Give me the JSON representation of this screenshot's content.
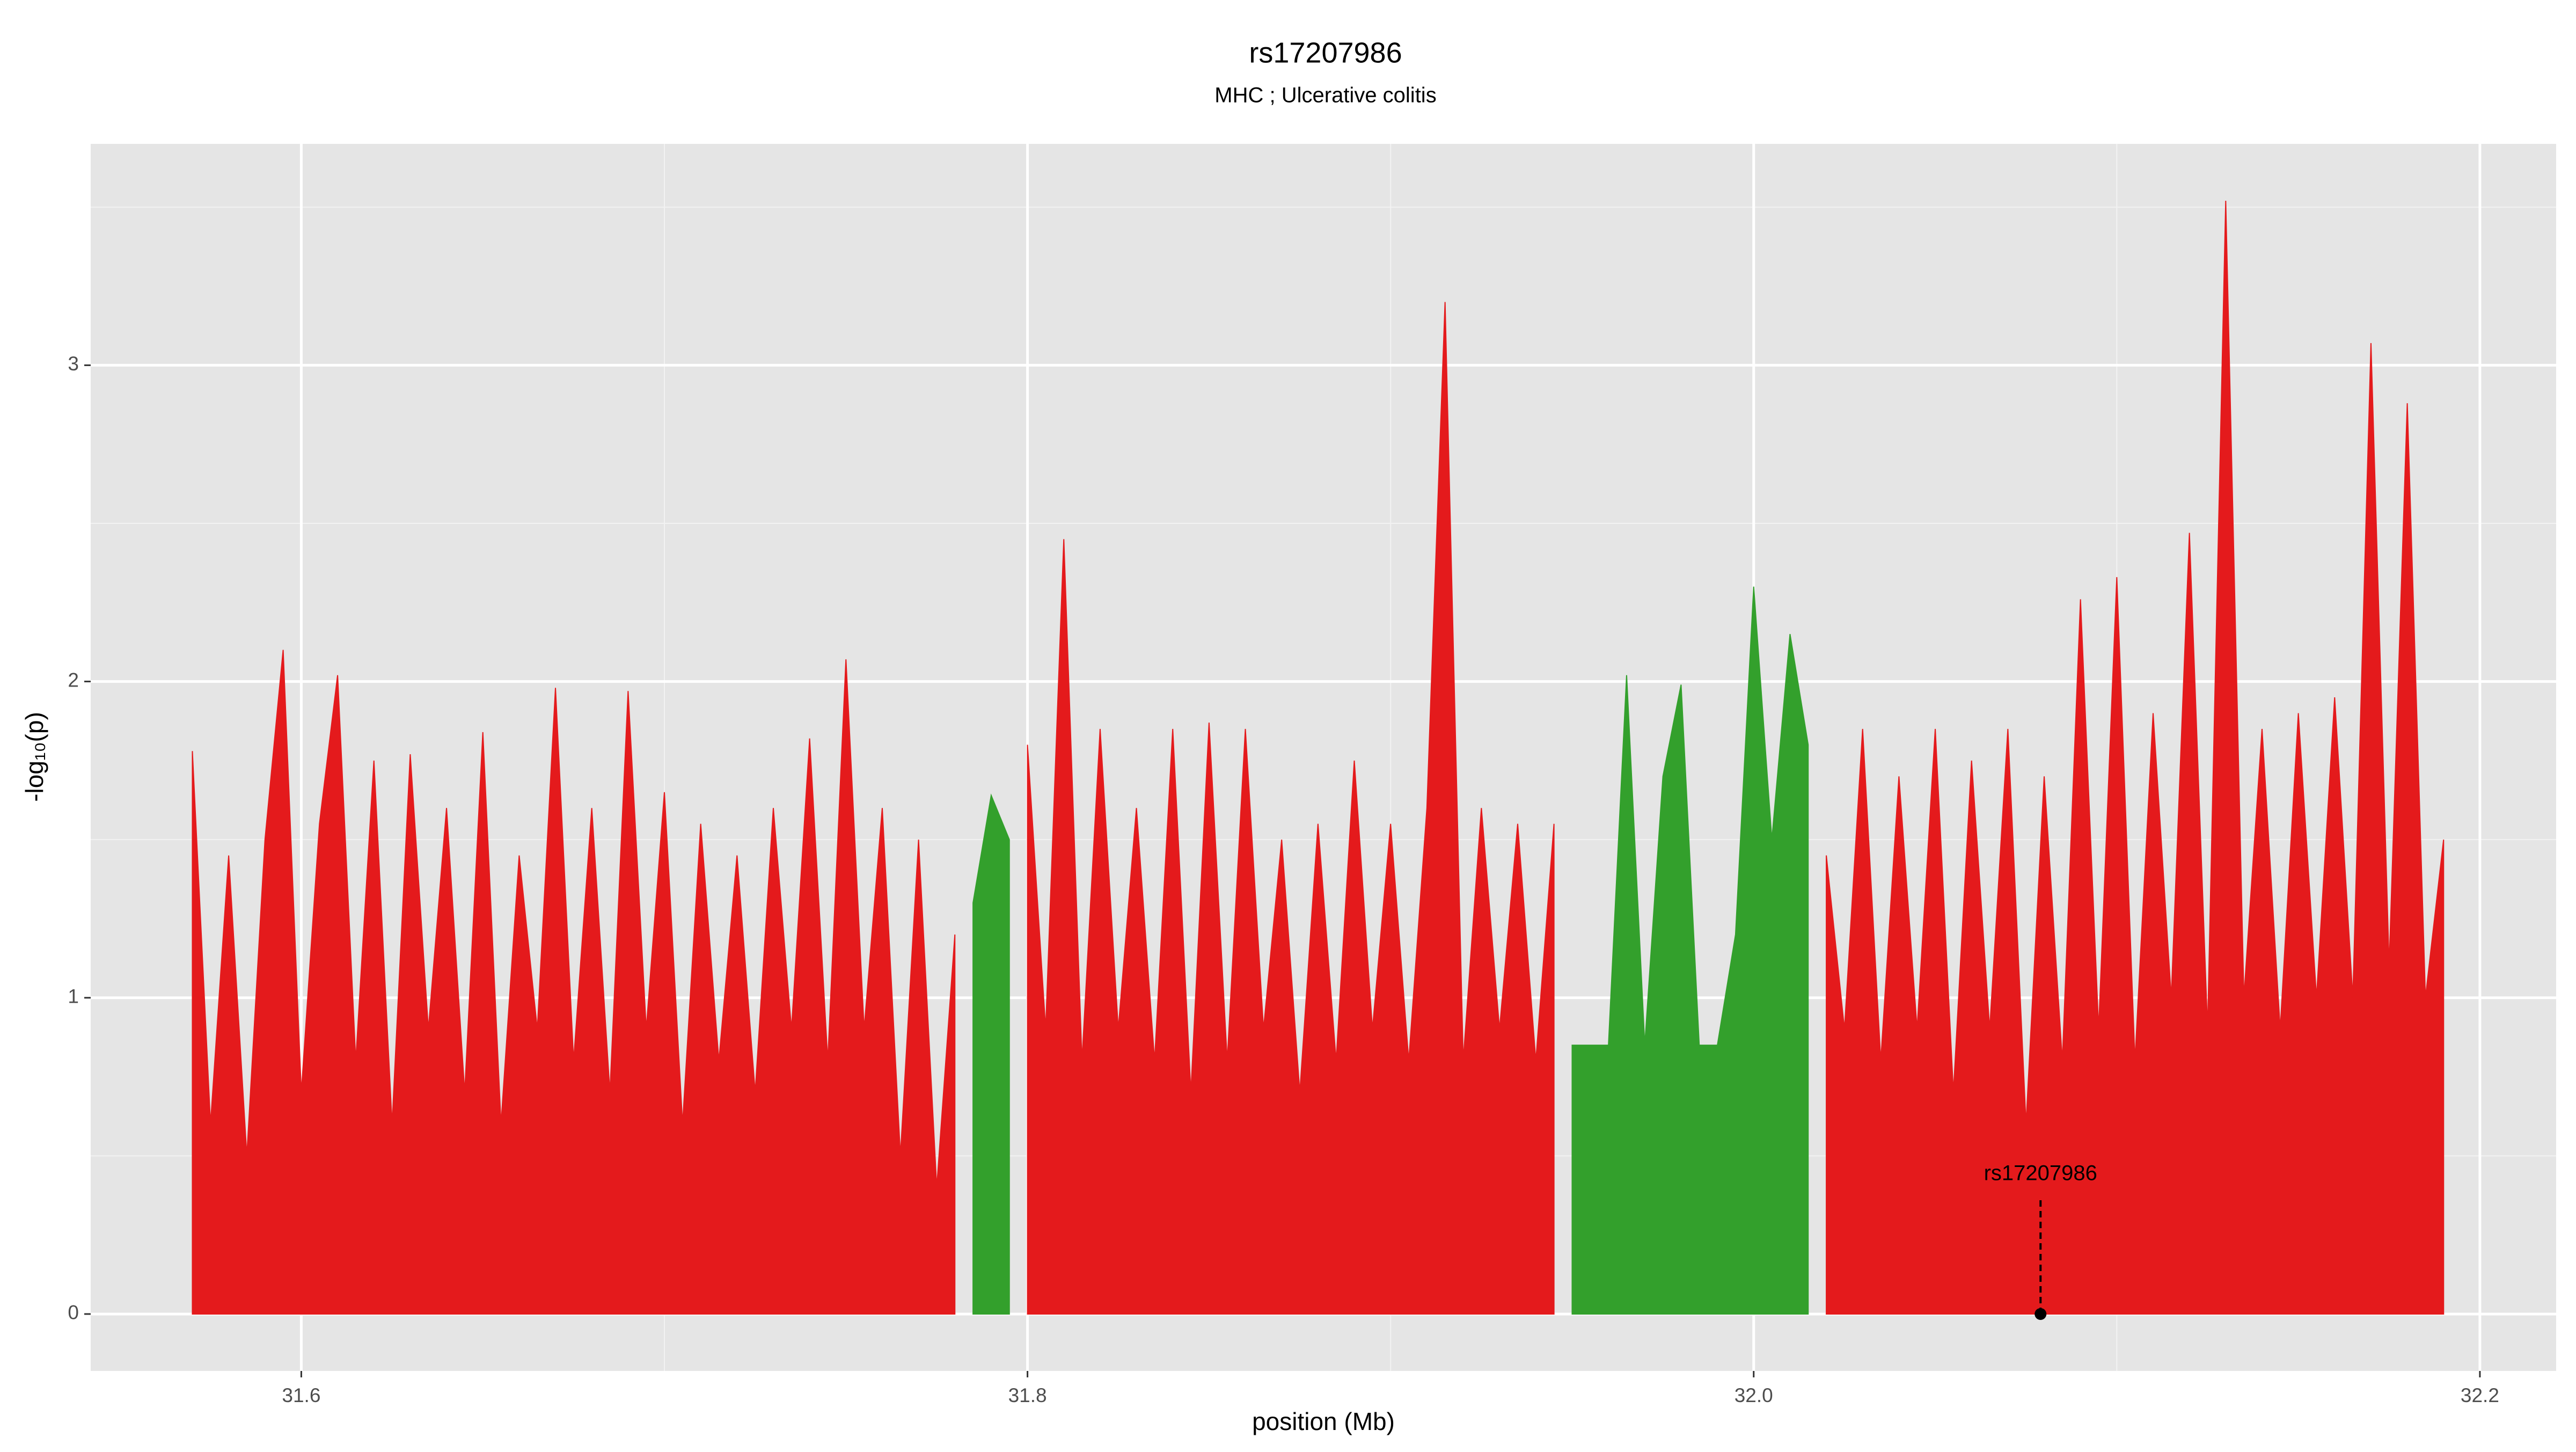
{
  "chart_data": {
    "type": "area",
    "title": "rs17207986",
    "subtitle": "MHC ; Ulcerative colitis",
    "x_label": "position (Mb)",
    "y_label": "-log₁₀(p)",
    "x": [
      31.57,
      31.575,
      31.58,
      31.585,
      31.59,
      31.595,
      31.6,
      31.605,
      31.61,
      31.615,
      31.62,
      31.625,
      31.63,
      31.635,
      31.64,
      31.645,
      31.65,
      31.655,
      31.66,
      31.665,
      31.67,
      31.675,
      31.68,
      31.685,
      31.69,
      31.695,
      31.7,
      31.705,
      31.71,
      31.715,
      31.72,
      31.725,
      31.73,
      31.735,
      31.74,
      31.745,
      31.75,
      31.755,
      31.76,
      31.765,
      31.77,
      31.775,
      31.78,
      31.785,
      31.79,
      31.795,
      31.8,
      31.805,
      31.81,
      31.815,
      31.82,
      31.825,
      31.83,
      31.835,
      31.84,
      31.845,
      31.85,
      31.855,
      31.86,
      31.865,
      31.87,
      31.875,
      31.88,
      31.885,
      31.89,
      31.895,
      31.9,
      31.905,
      31.91,
      31.915,
      31.92,
      31.925,
      31.93,
      31.935,
      31.94,
      31.945,
      31.95,
      31.955,
      31.96,
      31.965,
      31.97,
      31.975,
      31.98,
      31.985,
      31.99,
      31.995,
      32.0,
      32.005,
      32.01,
      32.015,
      32.02,
      32.025,
      32.03,
      32.035,
      32.04,
      32.045,
      32.05,
      32.055,
      32.06,
      32.065,
      32.07,
      32.075,
      32.08,
      32.085,
      32.09,
      32.095,
      32.1,
      32.105,
      32.11,
      32.115,
      32.12,
      32.125,
      32.13,
      32.135,
      32.14,
      32.145,
      32.15,
      32.155,
      32.16,
      32.165,
      32.17,
      32.175,
      32.18,
      32.185,
      32.19
    ],
    "series": [
      {
        "color": "#e41a1c",
        "values": [
          1.78,
          0.6,
          1.45,
          0.5,
          1.5,
          2.1,
          0.7,
          1.55,
          2.02,
          0.8,
          1.75,
          0.6,
          1.77,
          0.9,
          1.6,
          0.7,
          1.84,
          0.6,
          1.45,
          0.9,
          1.98,
          0.8,
          1.6,
          0.7,
          1.97,
          0.9,
          1.65,
          0.6,
          1.55,
          0.8,
          1.45,
          0.7,
          1.6,
          0.9,
          1.82,
          0.8,
          2.07,
          0.9,
          1.6,
          0.5,
          1.5,
          0.4,
          1.2,
          null,
          null,
          null,
          1.8,
          0.9,
          2.45,
          0.8,
          1.85,
          0.9,
          1.6,
          0.8,
          1.85,
          0.7,
          1.87,
          0.8,
          1.85,
          0.9,
          1.5,
          0.7,
          1.55,
          0.8,
          1.75,
          0.9,
          1.55,
          0.8,
          1.6,
          3.2,
          0.8,
          1.6,
          0.9,
          1.55,
          0.8,
          1.55,
          null,
          null,
          null,
          null,
          null,
          null,
          null,
          null,
          null,
          null,
          null,
          null,
          null,
          null,
          1.45,
          0.9,
          1.85,
          0.8,
          1.7,
          0.9,
          1.85,
          0.7,
          1.75,
          0.9,
          1.85,
          0.6,
          1.7,
          0.8,
          2.26,
          0.9,
          2.33,
          0.8,
          1.9,
          1.0,
          2.47,
          0.9,
          3.52,
          1.0,
          1.85,
          0.9,
          1.9,
          1.0,
          1.95,
          1.0,
          3.07,
          1.1,
          2.88,
          1.0,
          1.5
        ]
      },
      {
        "color": "#33a02c",
        "values": [
          null,
          null,
          null,
          null,
          null,
          null,
          null,
          null,
          null,
          null,
          null,
          null,
          null,
          null,
          null,
          null,
          null,
          null,
          null,
          null,
          null,
          null,
          null,
          null,
          null,
          null,
          null,
          null,
          null,
          null,
          null,
          null,
          null,
          null,
          null,
          null,
          null,
          null,
          null,
          null,
          null,
          null,
          null,
          1.3,
          1.64,
          1.5,
          null,
          null,
          null,
          null,
          null,
          null,
          null,
          null,
          null,
          null,
          null,
          null,
          null,
          null,
          null,
          null,
          null,
          null,
          null,
          null,
          null,
          null,
          null,
          null,
          null,
          null,
          null,
          null,
          null,
          null,
          0.85,
          0.85,
          0.85,
          2.02,
          0.85,
          1.7,
          1.99,
          0.85,
          0.85,
          1.2,
          2.3,
          1.5,
          2.15,
          1.8,
          null,
          null,
          null,
          null,
          null,
          null,
          null,
          null,
          null,
          null,
          null,
          null,
          null,
          null,
          null,
          null,
          null,
          null,
          null,
          null,
          null,
          null,
          null,
          null,
          null,
          null,
          null,
          null,
          null,
          null,
          null,
          null,
          null,
          null,
          null
        ]
      }
    ],
    "annotations": [
      {
        "text": "rs17207986",
        "x": 32.079,
        "y": 0
      }
    ],
    "xlim": [
      31.542,
      32.221
    ],
    "ylim": [
      -0.18,
      3.7
    ],
    "xticks": [
      31.6,
      31.8,
      {
        "value": 32,
        "label": "32.0"
      },
      32.2
    ],
    "yticks": [
      0,
      1,
      2,
      3
    ],
    "grid": true,
    "background": "#e5e5e5"
  }
}
